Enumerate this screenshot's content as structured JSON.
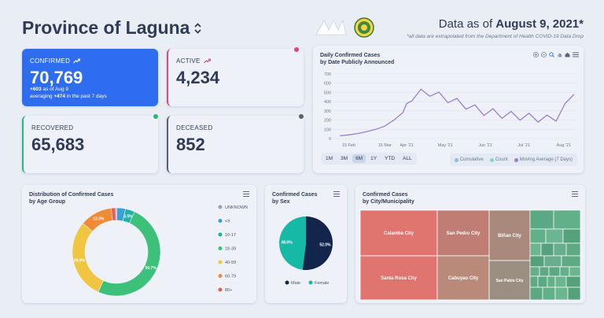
{
  "header": {
    "title": "Province of Laguna",
    "as_of_prefix": "Data as of ",
    "as_of_date": "August 9, 2021*",
    "note": "*all data are extrapolated from the Department of Health COVID-19 Data Drop"
  },
  "stats": {
    "confirmed": {
      "label": "CONFIRMED",
      "value": "70,769",
      "delta": "+603",
      "delta_suffix": " as of Aug 9",
      "avg_prefix": "averaging ",
      "avg": "+474",
      "avg_suffix": " in the past 7 days"
    },
    "active": {
      "label": "ACTIVE",
      "value": "4,234"
    },
    "recovered": {
      "label": "RECOVERED",
      "value": "65,683"
    },
    "deceased": {
      "label": "DECEASED",
      "value": "852"
    }
  },
  "colors": {
    "confirmed_bg": "#2f6df0",
    "active_accent": "#e0457b",
    "recovered_accent": "#2bb673",
    "deceased_accent": "#5a6070",
    "line": "#9b7bd6"
  },
  "daily_chart": {
    "title_line1": "Daily Confirmed Cases",
    "title_line2": "by Date Publicly Announced",
    "tools": [
      "zoom-in-icon",
      "zoom-out-icon",
      "search-icon",
      "pan-icon",
      "home-icon",
      "menu-icon"
    ],
    "range_buttons": [
      "1M",
      "3M",
      "6M",
      "1Y",
      "YTD",
      "ALL"
    ],
    "active_range": "6M",
    "legend": [
      {
        "name": "Cumulative",
        "color": "#8fb7e8"
      },
      {
        "name": "Count",
        "color": "#7fd6c4"
      },
      {
        "name": "Moving Average (7 Days)",
        "color": "#9b7bd6"
      }
    ]
  },
  "age_chart": {
    "title_line1": "Distribution of Confirmed Cases",
    "title_line2": "by Age Group",
    "legend": [
      {
        "name": "UNKNOWN",
        "color": "#9aa3b5"
      },
      {
        "name": "<9",
        "color": "#3aa0d8"
      },
      {
        "name": "10-17",
        "color": "#1fb3a8"
      },
      {
        "name": "18-39",
        "color": "#3cc07a"
      },
      {
        "name": "40-59",
        "color": "#f0c640"
      },
      {
        "name": "60-79",
        "color": "#f08a35"
      },
      {
        "name": "80+",
        "color": "#ef5a5a"
      }
    ]
  },
  "sex_chart": {
    "title_line1": "Confirmed Cases",
    "title_line2": "by Sex",
    "legend": [
      {
        "name": "Male",
        "color": "#13254a"
      },
      {
        "name": "Female",
        "color": "#16b9a6"
      }
    ]
  },
  "city_chart": {
    "title_line1": "Confirmed Cases",
    "title_line2": "by City/Municipality"
  },
  "chart_data": [
    {
      "type": "line",
      "title": "Daily Confirmed Cases by Date Publicly Announced",
      "x_tick_labels": [
        "15 Feb",
        "15 Mar",
        "Apr '21",
        "May '21",
        "Jun '21",
        "Jul '21",
        "Aug '21"
      ],
      "y_tick_labels": [
        "0",
        "100",
        "200",
        "300",
        "400",
        "500",
        "600",
        "700"
      ],
      "ylim": [
        0,
        700
      ],
      "grid": true,
      "legend_position": "bottom-right",
      "series": [
        {
          "name": "Moving Average (7 Days)",
          "x": [
            "2021-02-08",
            "2021-02-15",
            "2021-02-22",
            "2021-03-01",
            "2021-03-08",
            "2021-03-15",
            "2021-03-22",
            "2021-03-29",
            "2021-04-01",
            "2021-04-05",
            "2021-04-12",
            "2021-04-19",
            "2021-04-26",
            "2021-05-03",
            "2021-05-10",
            "2021-05-17",
            "2021-05-24",
            "2021-05-31",
            "2021-06-07",
            "2021-06-14",
            "2021-06-21",
            "2021-06-28",
            "2021-07-05",
            "2021-07-12",
            "2021-07-19",
            "2021-07-26",
            "2021-08-02",
            "2021-08-09"
          ],
          "values": [
            30,
            40,
            55,
            75,
            100,
            135,
            200,
            280,
            380,
            460,
            500,
            510,
            470,
            440,
            400,
            370,
            330,
            300,
            290,
            270,
            260,
            250,
            240,
            230,
            220,
            240,
            380,
            480
          ]
        }
      ]
    },
    {
      "type": "pie",
      "title": "Distribution of Confirmed Cases by Age Group",
      "categories": [
        "UNKNOWN",
        "<9",
        "10-17",
        "18-39",
        "40-59",
        "60-79",
        "80+"
      ],
      "values": [
        0.5,
        3.2,
        3.5,
        50.7,
        29.9,
        12.0,
        1.6
      ],
      "data_labels": [
        "",
        "",
        "3.5%",
        "50.7%",
        "29.9%",
        "12.0%",
        ""
      ],
      "legend_position": "right"
    },
    {
      "type": "pie",
      "title": "Confirmed Cases by Sex",
      "categories": [
        "Male",
        "Female"
      ],
      "values": [
        52.0,
        48.0
      ],
      "data_labels": [
        "52.0%",
        "48.0%"
      ],
      "legend_position": "bottom"
    },
    {
      "type": "heatmap",
      "title": "Confirmed Cases by City/Municipality",
      "categories": [
        "Calamba City",
        "Santa Rosa City",
        "San Pedro City",
        "Cabuyao City",
        "Biñan City",
        "San Pablo City"
      ]
    }
  ]
}
